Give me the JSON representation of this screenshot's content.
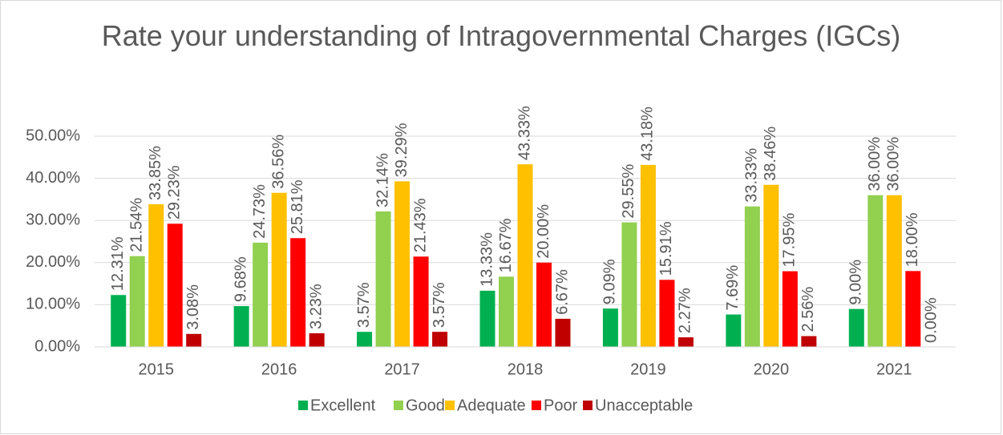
{
  "chart_data": {
    "type": "bar",
    "title": "Rate your understanding of Intragovernmental Charges (IGCs)",
    "categories": [
      "2015",
      "2016",
      "2017",
      "2018",
      "2019",
      "2020",
      "2021"
    ],
    "series": [
      {
        "name": "Excellent",
        "color": "#00b050",
        "values": [
          12.31,
          9.68,
          3.57,
          13.33,
          9.09,
          7.69,
          9.0
        ],
        "value_labels": [
          "12.31%",
          "9.68%",
          "3.57%",
          "13.33%",
          "9.09%",
          "7.69%",
          "9.00%"
        ]
      },
      {
        "name": "Good",
        "color": "#92d050",
        "values": [
          21.54,
          24.73,
          32.14,
          16.67,
          29.55,
          33.33,
          36.0
        ],
        "value_labels": [
          "21.54%",
          "24.73%",
          "32.14%",
          "16.67%",
          "29.55%",
          "33.33%",
          "36.00%"
        ]
      },
      {
        "name": "Adequate",
        "color": "#ffc000",
        "values": [
          33.85,
          36.56,
          39.29,
          43.33,
          43.18,
          38.46,
          36.0
        ],
        "value_labels": [
          "33.85%",
          "36.56%",
          "39.29%",
          "43.33%",
          "43.18%",
          "38.46%",
          "36.00%"
        ]
      },
      {
        "name": "Poor",
        "color": "#ff0000",
        "values": [
          29.23,
          25.81,
          21.43,
          20.0,
          15.91,
          17.95,
          18.0
        ],
        "value_labels": [
          "29.23%",
          "25.81%",
          "21.43%",
          "20.00%",
          "15.91%",
          "17.95%",
          "18.00%"
        ]
      },
      {
        "name": "Unacceptable",
        "color": "#c00000",
        "values": [
          3.08,
          3.23,
          3.57,
          6.67,
          2.27,
          2.56,
          0.0
        ],
        "value_labels": [
          "3.08%",
          "3.23%",
          "3.57%",
          "6.67%",
          "2.27%",
          "2.56%",
          "0.00%"
        ]
      }
    ],
    "ylim": [
      0,
      50
    ],
    "yticks": [
      {
        "value": 0,
        "label": "0.00%"
      },
      {
        "value": 10,
        "label": "10.00%"
      },
      {
        "value": 20,
        "label": "20.00%"
      },
      {
        "value": 30,
        "label": "30.00%"
      },
      {
        "value": 40,
        "label": "40.00%"
      },
      {
        "value": 50,
        "label": "50.00%"
      }
    ],
    "grid": true,
    "legend": "bottom"
  }
}
